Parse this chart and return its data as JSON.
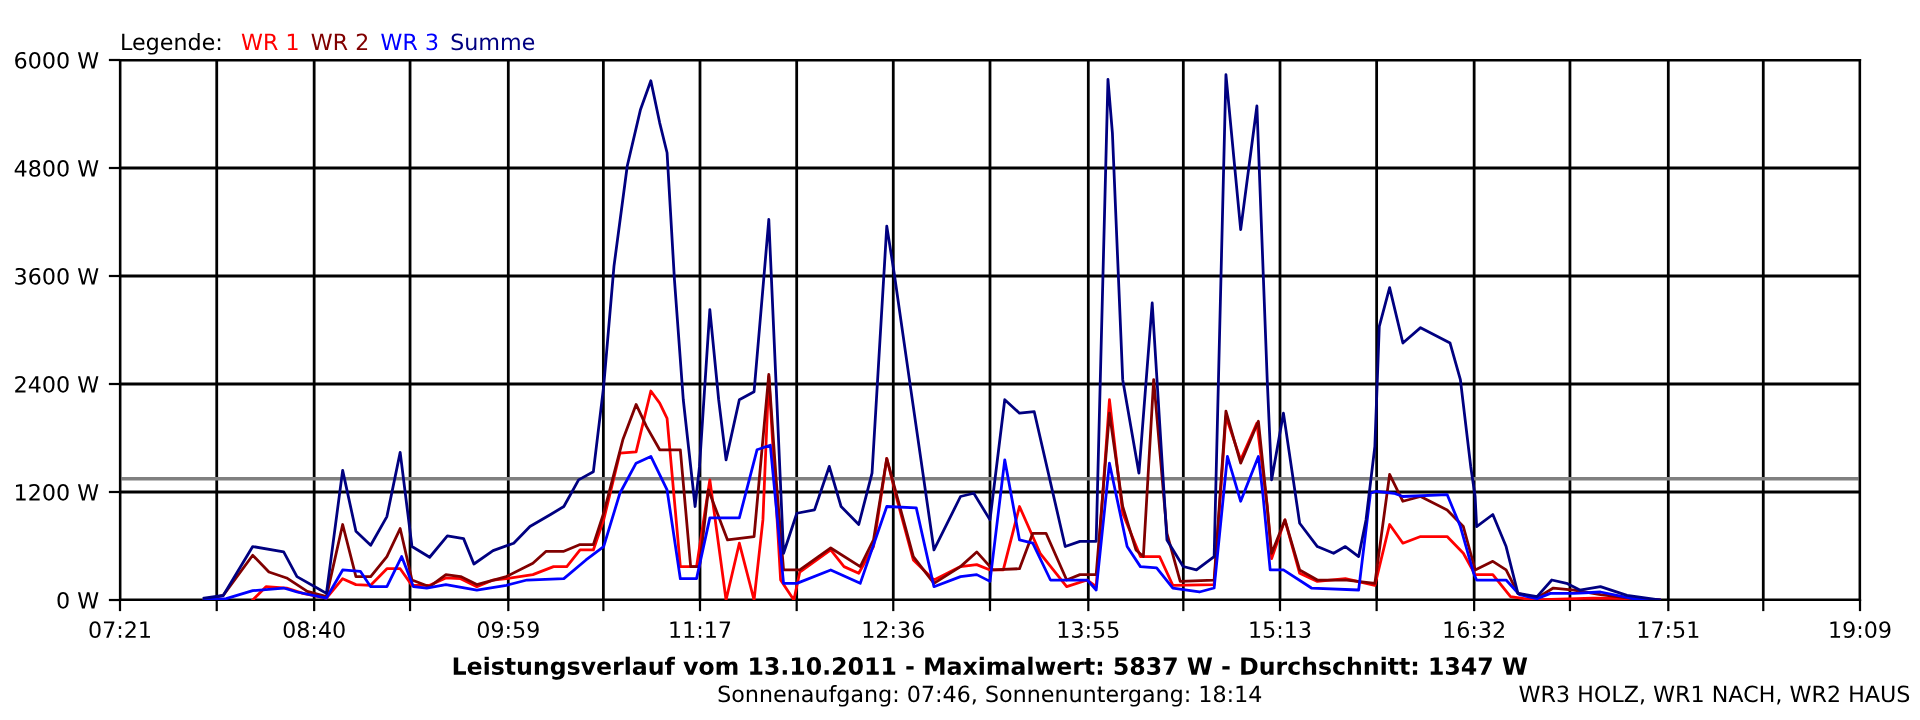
{
  "chart_data": {
    "type": "line",
    "title": "Leistungsverlauf vom 13.10.2011 - Maximalwert: 5837 W - Durchschnitt: 1347 W",
    "annotations": [
      "Sonnenaufgang: 07:46, Sonnenuntergang: 18:14",
      "WR3 HOLZ, WR1 NACH, WR2 HAUS"
    ],
    "legend_title": "Legende:",
    "legend": "top left",
    "grid": true,
    "marker": "none",
    "line_style": "solid",
    "xlim": [
      7.35,
      19.15
    ],
    "ylim": [
      0,
      6000
    ],
    "xticks": [
      {
        "value": 7.35,
        "label": "07:21"
      },
      {
        "value": 8.006,
        "label": null
      },
      {
        "value": 8.6667,
        "label": "08:40"
      },
      {
        "value": 9.317,
        "label": null
      },
      {
        "value": 9.9833,
        "label": "09:59"
      },
      {
        "value": 10.628,
        "label": null
      },
      {
        "value": 11.2833,
        "label": "11:17"
      },
      {
        "value": 11.939,
        "label": null
      },
      {
        "value": 12.594,
        "label": "12:36"
      },
      {
        "value": 13.25,
        "label": null
      },
      {
        "value": 13.9167,
        "label": "13:55"
      },
      {
        "value": 14.561,
        "label": null
      },
      {
        "value": 15.2167,
        "label": "15:13"
      },
      {
        "value": 15.872,
        "label": null
      },
      {
        "value": 16.5333,
        "label": "16:32"
      },
      {
        "value": 17.183,
        "label": null
      },
      {
        "value": 17.85,
        "label": "17:51"
      },
      {
        "value": 18.494,
        "label": null
      },
      {
        "value": 19.15,
        "label": "19:09"
      }
    ],
    "yticks": [
      {
        "value": 0,
        "label": "0 W"
      },
      {
        "value": 1200,
        "label": "1200 W"
      },
      {
        "value": 2400,
        "label": "2400 W"
      },
      {
        "value": 3600,
        "label": "3600 W"
      },
      {
        "value": 4800,
        "label": "4800 W"
      },
      {
        "value": 6000,
        "label": "6000 W"
      }
    ],
    "ref_lines": [
      {
        "axis": "y",
        "value": 1347,
        "color": "#808080"
      }
    ],
    "series": [
      {
        "name": "WR 1",
        "color": "#ff0000",
        "x": [
          8.25,
          8.34,
          8.48,
          8.59,
          8.75,
          8.86,
          8.95,
          9.05,
          9.16,
          9.25,
          9.33,
          9.45,
          9.56,
          9.66,
          9.77,
          9.88,
          9.97,
          10.15,
          10.29,
          10.38,
          10.47,
          10.56,
          10.63,
          10.74,
          10.85,
          10.95,
          11.01,
          11.06,
          11.15,
          11.26,
          11.35,
          11.46,
          11.55,
          11.65,
          11.71,
          11.75,
          11.83,
          11.92,
          11.96,
          12.17,
          12.26,
          12.36,
          12.46,
          12.55,
          12.62,
          12.73,
          12.87,
          13.05,
          13.16,
          13.25,
          13.34,
          13.45,
          13.59,
          13.77,
          13.91,
          13.97,
          14.06,
          14.15,
          14.27,
          14.4,
          14.49,
          14.77,
          14.85,
          14.95,
          15.06,
          15.13,
          15.16,
          15.25,
          15.35,
          15.47,
          15.66,
          15.86,
          15.96,
          16.05,
          16.17,
          16.35,
          16.46,
          16.54,
          16.66,
          16.78,
          16.94,
          17.34,
          17.61,
          17.79
        ],
        "values": [
          0,
          148,
          133,
          74,
          22,
          237,
          171,
          163,
          348,
          348,
          163,
          163,
          245,
          237,
          148,
          222,
          237,
          282,
          371,
          371,
          556,
          556,
          890,
          1631,
          1646,
          2322,
          2188,
          2018,
          371,
          371,
          1335,
          0,
          631,
          0,
          890,
          2485,
          222,
          0,
          311,
          556,
          371,
          297,
          594,
          1572,
          1112,
          445,
          222,
          371,
          393,
          334,
          334,
          1039,
          519,
          148,
          222,
          148,
          2225,
          964,
          483,
          483,
          163,
          171,
          2040,
          1557,
          1965,
          1039,
          460,
          890,
          297,
          207,
          237,
          163,
          839,
          631,
          705,
          705,
          519,
          282,
          282,
          37,
          0,
          22,
          15,
          0
        ]
      },
      {
        "name": "WR 2",
        "color": "#800000",
        "x": [
          7.92,
          8.05,
          8.25,
          8.36,
          8.48,
          8.62,
          8.75,
          8.86,
          8.95,
          9.05,
          9.16,
          9.25,
          9.33,
          9.45,
          9.56,
          9.66,
          9.77,
          9.97,
          10.15,
          10.24,
          10.36,
          10.47,
          10.56,
          10.63,
          10.76,
          10.85,
          10.92,
          11.01,
          11.15,
          11.22,
          11.28,
          11.34,
          11.47,
          11.65,
          11.75,
          11.8,
          11.85,
          11.96,
          12.17,
          12.37,
          12.46,
          12.55,
          12.62,
          12.73,
          12.87,
          13.05,
          13.16,
          13.27,
          13.45,
          13.54,
          13.63,
          13.77,
          13.86,
          13.97,
          14.06,
          14.15,
          14.24,
          14.29,
          14.36,
          14.45,
          14.54,
          14.77,
          14.85,
          14.95,
          15.07,
          15.13,
          15.16,
          15.25,
          15.35,
          15.47,
          15.67,
          15.86,
          15.96,
          16.05,
          16.17,
          16.35,
          16.46,
          16.54,
          16.66,
          16.75,
          16.83,
          16.96,
          17.07,
          17.21,
          17.39,
          17.61,
          17.79
        ],
        "values": [
          0,
          52,
          497,
          311,
          245,
          96,
          37,
          839,
          260,
          260,
          483,
          794,
          222,
          148,
          282,
          260,
          171,
          260,
          408,
          541,
          541,
          616,
          616,
          964,
          1780,
          2173,
          1929,
          1669,
          1669,
          371,
          371,
          1224,
          667,
          705,
          2507,
          1335,
          334,
          334,
          578,
          371,
          667,
          1572,
          1150,
          483,
          185,
          371,
          534,
          334,
          348,
          741,
          741,
          222,
          282,
          282,
          2076,
          1039,
          556,
          483,
          2448,
          741,
          207,
          222,
          2099,
          1520,
          1987,
          1039,
          519,
          890,
          334,
          222,
          222,
          185,
          1395,
          1097,
          1150,
          1001,
          816,
          334,
          430,
          334,
          74,
          22,
          133,
          111,
          59,
          15,
          0
        ]
      },
      {
        "name": "WR 3",
        "color": "#0000ff",
        "x": [
          7.92,
          8.07,
          8.25,
          8.46,
          8.55,
          8.75,
          8.86,
          8.98,
          9.05,
          9.16,
          9.26,
          9.34,
          9.43,
          9.56,
          9.77,
          9.97,
          10.11,
          10.36,
          10.51,
          10.63,
          10.74,
          10.85,
          10.95,
          11.06,
          11.15,
          11.26,
          11.35,
          11.55,
          11.67,
          11.76,
          11.85,
          11.94,
          12.17,
          12.37,
          12.55,
          12.75,
          12.87,
          13.05,
          13.16,
          13.25,
          13.35,
          13.45,
          13.54,
          13.66,
          13.91,
          13.97,
          14.06,
          14.18,
          14.27,
          14.38,
          14.49,
          14.67,
          14.77,
          14.86,
          14.95,
          15.07,
          15.1,
          15.15,
          15.24,
          15.43,
          15.75,
          15.83,
          15.87,
          15.99,
          16.05,
          16.35,
          16.44,
          16.53,
          16.55,
          16.75,
          16.84,
          16.96,
          17.05,
          17.21,
          17.39,
          17.61,
          17.79
        ],
        "values": [
          0,
          15,
          104,
          133,
          89,
          22,
          334,
          319,
          148,
          148,
          483,
          148,
          133,
          171,
          111,
          163,
          222,
          237,
          445,
          594,
          1186,
          1520,
          1595,
          1224,
          237,
          237,
          912,
          912,
          1669,
          1720,
          185,
          185,
          334,
          185,
          1039,
          1024,
          148,
          260,
          282,
          207,
          1557,
          667,
          631,
          222,
          222,
          111,
          1520,
          594,
          371,
          356,
          133,
          89,
          133,
          1595,
          1097,
          1595,
          1186,
          334,
          334,
          133,
          111,
          1186,
          1208,
          1186,
          1150,
          1172,
          816,
          297,
          222,
          222,
          59,
          15,
          74,
          74,
          89,
          15,
          0
        ]
      },
      {
        "name": "Summe",
        "color": "#000080",
        "x": [
          7.92,
          8.05,
          8.25,
          8.46,
          8.55,
          8.71,
          8.75,
          8.86,
          8.95,
          9.05,
          9.16,
          9.25,
          9.33,
          9.45,
          9.57,
          9.68,
          9.75,
          9.88,
          10.02,
          10.13,
          10.27,
          10.36,
          10.46,
          10.56,
          10.63,
          10.7,
          10.79,
          10.88,
          10.95,
          11.01,
          11.06,
          11.11,
          11.17,
          11.25,
          11.28,
          11.35,
          11.41,
          11.46,
          11.55,
          11.65,
          11.75,
          11.8,
          11.85,
          11.94,
          12.06,
          12.16,
          12.24,
          12.36,
          12.45,
          12.55,
          12.6,
          12.71,
          12.87,
          13.05,
          13.14,
          13.25,
          13.35,
          13.45,
          13.55,
          13.76,
          13.86,
          13.97,
          14.05,
          14.08,
          14.15,
          14.26,
          14.35,
          14.45,
          14.56,
          14.65,
          14.77,
          14.85,
          14.95,
          15.06,
          15.13,
          15.16,
          15.24,
          15.35,
          15.47,
          15.58,
          15.66,
          15.75,
          15.8,
          15.86,
          15.89,
          15.96,
          16.05,
          16.17,
          16.37,
          16.44,
          16.51,
          16.54,
          16.55,
          16.66,
          16.75,
          16.83,
          16.96,
          17.06,
          17.16,
          17.25,
          17.39,
          17.57,
          17.79
        ],
        "values": [
          20,
          50,
          594,
          534,
          260,
          111,
          74,
          1440,
          764,
          608,
          927,
          1640,
          594,
          475,
          712,
          682,
          400,
          549,
          631,
          816,
          950,
          1039,
          1335,
          1424,
          2374,
          3709,
          4822,
          5451,
          5770,
          5302,
          4969,
          3560,
          2225,
          1039,
          1484,
          3226,
          2225,
          1557,
          2225,
          2314,
          4228,
          2374,
          519,
          964,
          1001,
          1484,
          1039,
          839,
          1409,
          4154,
          3634,
          2374,
          556,
          1150,
          1186,
          890,
          2225,
          2076,
          2092,
          594,
          652,
          652,
          5785,
          5191,
          2448,
          1409,
          3300,
          667,
          372,
          334,
          483,
          5837,
          4116,
          5489,
          2448,
          1335,
          2076,
          853,
          594,
          519,
          594,
          483,
          890,
          1706,
          3041,
          3471,
          2855,
          3026,
          2855,
          2448,
          1484,
          1150,
          816,
          950,
          594,
          74,
          37,
          222,
          185,
          111,
          148,
          52,
          0
        ]
      }
    ]
  }
}
